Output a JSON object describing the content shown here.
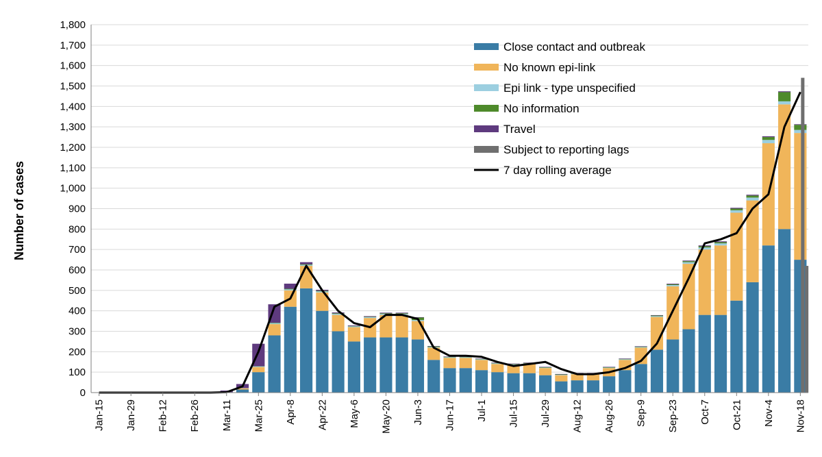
{
  "chart_data": {
    "type": "bar",
    "stacked": true,
    "title": "",
    "xlabel": "",
    "ylabel": "Number of cases",
    "ylim": [
      0,
      1800
    ],
    "yticks": [
      0,
      100,
      200,
      300,
      400,
      500,
      600,
      700,
      800,
      900,
      1000,
      1100,
      1200,
      1300,
      1400,
      1500,
      1600,
      1700,
      1800
    ],
    "ytick_labels": [
      "0",
      "100",
      "200",
      "300",
      "400",
      "500",
      "600",
      "700",
      "800",
      "900",
      "1,000",
      "1,100",
      "1,200",
      "1,300",
      "1,400",
      "1,500",
      "1,600",
      "1,700",
      "1,800"
    ],
    "xticks": [
      "Jan-15",
      "Jan-29",
      "Feb-12",
      "Feb-26",
      "Mar-11",
      "Mar-25",
      "Apr-8",
      "Apr-22",
      "May-6",
      "May-20",
      "Jun-3",
      "Jun-17",
      "Jul-1",
      "Jul-15",
      "Jul-29",
      "Aug-12",
      "Aug-26",
      "Sep-9",
      "Sep-23",
      "Oct-7",
      "Oct-21",
      "Nov-4",
      "Nov-18"
    ],
    "grid": "horizontal",
    "legend_position": "top-right",
    "legend": [
      {
        "name": "Close contact and outbreak",
        "color": "#3a7ca5",
        "kind": "bar"
      },
      {
        "name": "No known epi-link",
        "color": "#f0b55a",
        "kind": "bar"
      },
      {
        "name": "Epi link - type unspecified",
        "color": "#9ccfe0",
        "kind": "bar"
      },
      {
        "name": "No information",
        "color": "#4e8a2b",
        "kind": "bar"
      },
      {
        "name": "Travel",
        "color": "#5e3a7e",
        "kind": "bar"
      },
      {
        "name": "Subject to reporting lags",
        "color": "#6f6f6f",
        "kind": "bar"
      },
      {
        "name": "7 day rolling average",
        "color": "#000000",
        "kind": "line"
      }
    ],
    "series_order": [
      "Close contact and outbreak",
      "No known epi-link",
      "Epi link - type unspecified",
      "No information",
      "Travel"
    ],
    "x": [
      "Jan-15",
      "Jan-22",
      "Jan-29",
      "Feb-5",
      "Feb-12",
      "Feb-19",
      "Feb-26",
      "Mar-4",
      "Mar-11",
      "Mar-18",
      "Mar-25",
      "Apr-1",
      "Apr-8",
      "Apr-15",
      "Apr-22",
      "Apr-29",
      "May-6",
      "May-13",
      "May-20",
      "May-27",
      "Jun-3",
      "Jun-10",
      "Jun-17",
      "Jun-24",
      "Jul-1",
      "Jul-8",
      "Jul-15",
      "Jul-22",
      "Jul-29",
      "Aug-5",
      "Aug-12",
      "Aug-19",
      "Aug-26",
      "Sep-2",
      "Sep-9",
      "Sep-16",
      "Sep-23",
      "Sep-30",
      "Oct-7",
      "Oct-14",
      "Oct-21",
      "Oct-28",
      "Nov-4",
      "Nov-11",
      "Nov-18"
    ],
    "series": [
      {
        "name": "Close contact and outbreak",
        "values": [
          0,
          0,
          0,
          0,
          0,
          0,
          0,
          0,
          2,
          15,
          100,
          280,
          420,
          510,
          400,
          300,
          250,
          270,
          270,
          270,
          260,
          160,
          120,
          120,
          110,
          100,
          95,
          95,
          85,
          55,
          60,
          60,
          80,
          110,
          140,
          210,
          260,
          310,
          380,
          380,
          450,
          540,
          720,
          800,
          650
        ]
      },
      {
        "name": "No known epi-link",
        "values": [
          0,
          0,
          0,
          0,
          0,
          0,
          0,
          0,
          0,
          6,
          25,
          55,
          80,
          110,
          90,
          80,
          70,
          95,
          110,
          110,
          90,
          60,
          50,
          50,
          50,
          40,
          40,
          45,
          35,
          30,
          30,
          30,
          40,
          50,
          80,
          160,
          260,
          320,
          320,
          340,
          430,
          400,
          500,
          610,
          620
        ]
      },
      {
        "name": "Epi link - type unspecified",
        "values": [
          0,
          0,
          0,
          0,
          0,
          0,
          0,
          0,
          0,
          1,
          3,
          5,
          5,
          5,
          5,
          5,
          4,
          4,
          5,
          5,
          5,
          3,
          3,
          3,
          3,
          3,
          3,
          3,
          2,
          2,
          2,
          2,
          2,
          3,
          3,
          4,
          6,
          8,
          10,
          10,
          12,
          14,
          16,
          15,
          15
        ]
      },
      {
        "name": "No information",
        "values": [
          0,
          0,
          0,
          0,
          0,
          0,
          0,
          0,
          0,
          0,
          1,
          2,
          3,
          3,
          3,
          3,
          2,
          2,
          3,
          3,
          12,
          3,
          2,
          2,
          2,
          2,
          2,
          2,
          2,
          2,
          2,
          2,
          2,
          2,
          2,
          3,
          4,
          5,
          6,
          6,
          8,
          10,
          14,
          45,
          25
        ]
      },
      {
        "name": "Travel",
        "values": [
          0,
          0,
          0,
          0,
          0,
          0,
          0,
          0,
          8,
          20,
          110,
          90,
          25,
          10,
          5,
          4,
          3,
          3,
          3,
          3,
          2,
          2,
          2,
          2,
          2,
          2,
          2,
          2,
          2,
          2,
          2,
          2,
          2,
          2,
          2,
          2,
          3,
          3,
          4,
          4,
          4,
          4,
          4,
          4,
          3
        ]
      }
    ],
    "reporting_lags": [
      {
        "x": "Nov-18",
        "value": 1540
      },
      {
        "x": "Nov-18",
        "value": 620
      }
    ],
    "rolling_average": {
      "name": "7 day rolling average",
      "values": [
        0,
        0,
        0,
        0,
        0,
        0,
        0,
        0,
        2,
        30,
        200,
        420,
        460,
        620,
        500,
        400,
        340,
        320,
        380,
        380,
        360,
        220,
        180,
        180,
        175,
        150,
        130,
        140,
        150,
        115,
        90,
        90,
        100,
        120,
        155,
        240,
        400,
        560,
        730,
        750,
        780,
        900,
        970,
        1300,
        1470
      ]
    }
  }
}
